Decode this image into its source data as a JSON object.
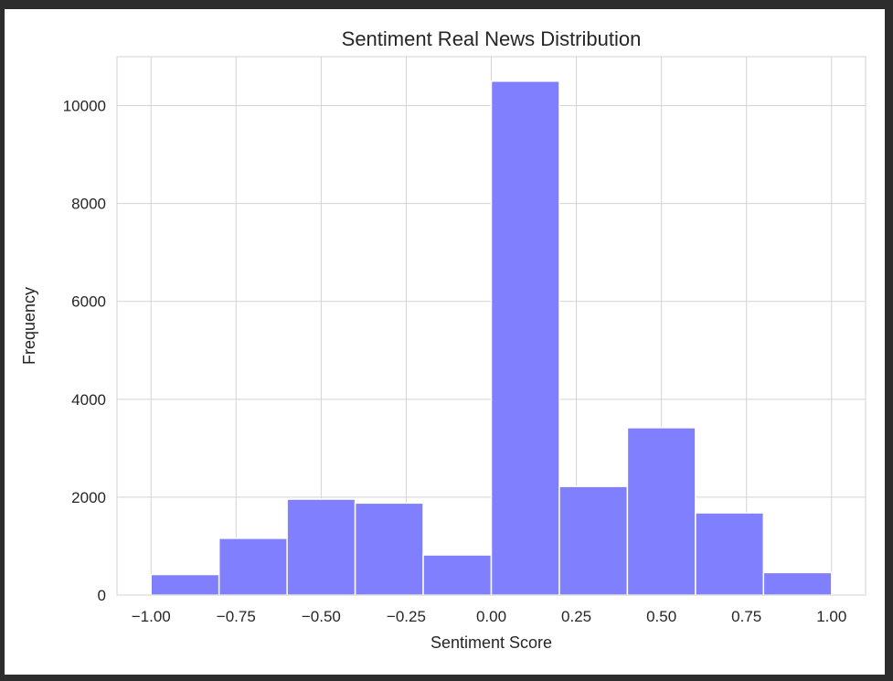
{
  "colors": {
    "background": "#2d2d2d",
    "bar_fill": "#8080ff",
    "bar_edge": "#ffffff",
    "grid": "#d3d3d3"
  },
  "chart_data": {
    "type": "bar",
    "title": "Sentiment Real News Distribution",
    "xlabel": "Sentiment Score",
    "ylabel": "Frequency",
    "bin_edges": [
      -1.0,
      -0.8,
      -0.6,
      -0.4,
      -0.2,
      0.0,
      0.2,
      0.4,
      0.6,
      0.8,
      1.0
    ],
    "values": [
      420,
      1160,
      1960,
      1880,
      820,
      10500,
      2220,
      3420,
      1680,
      460
    ],
    "xlim": [
      -1.1,
      1.1
    ],
    "ylim": [
      0,
      11000
    ],
    "x_ticks": [
      -1.0,
      -0.75,
      -0.5,
      -0.25,
      0.0,
      0.25,
      0.5,
      0.75,
      1.0
    ],
    "x_tick_labels": [
      "−1.00",
      "−0.75",
      "−0.50",
      "−0.25",
      "0.00",
      "0.25",
      "0.50",
      "0.75",
      "1.00"
    ],
    "y_ticks": [
      0,
      2000,
      4000,
      6000,
      8000,
      10000
    ],
    "y_tick_labels": [
      "0",
      "2000",
      "4000",
      "6000",
      "8000",
      "10000"
    ],
    "grid": true,
    "legend": false
  }
}
